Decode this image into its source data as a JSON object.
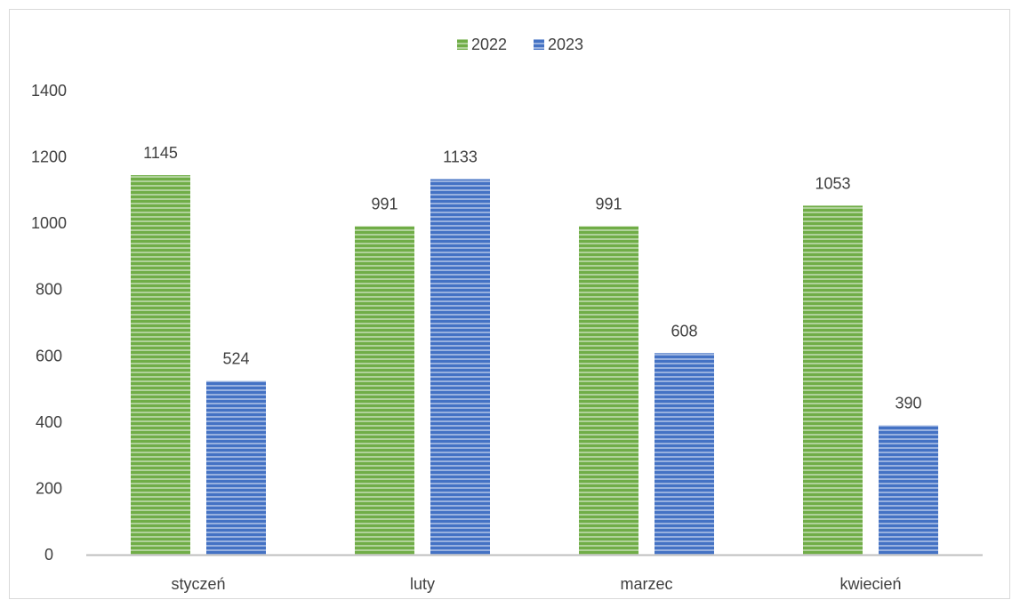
{
  "chart_data": {
    "type": "bar",
    "categories": [
      "styczeń",
      "luty",
      "marzec",
      "kwiecień"
    ],
    "series": [
      {
        "name": "2022",
        "values": [
          1145,
          991,
          991,
          1053
        ],
        "color": "#70ad47"
      },
      {
        "name": "2023",
        "values": [
          524,
          1133,
          608,
          390
        ],
        "color": "#4472c4"
      }
    ],
    "ylim": [
      0,
      1400
    ],
    "yticks": [
      0,
      200,
      400,
      600,
      800,
      1000,
      1200,
      1400
    ],
    "legend_position": "top-center",
    "grid": false,
    "bar_pattern": "horizontal-stripes",
    "title": "",
    "xlabel": "",
    "ylabel": ""
  }
}
